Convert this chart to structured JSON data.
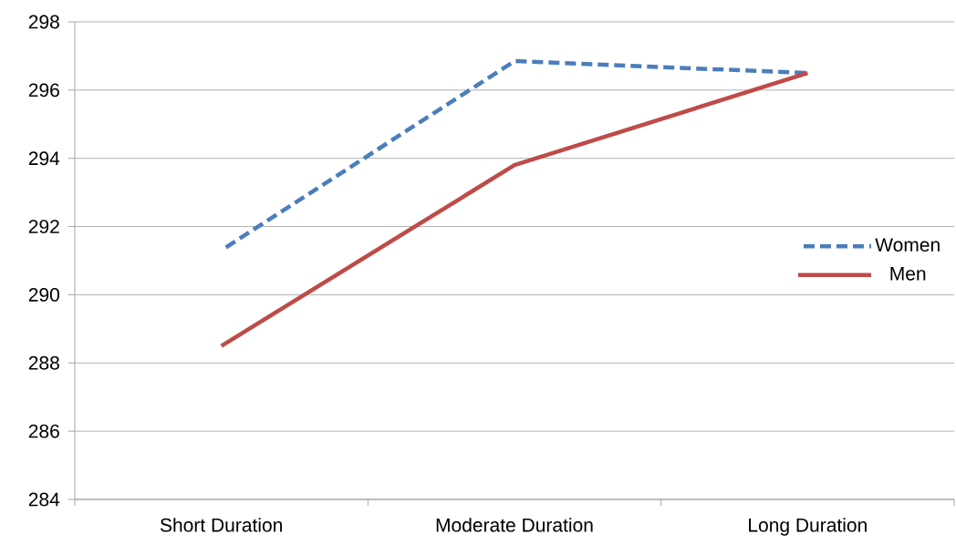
{
  "chart_data": {
    "type": "line",
    "categories": [
      "Short Duration",
      "Moderate Duration",
      "Long Duration"
    ],
    "series": [
      {
        "name": "Women",
        "color": "#4a7ebb",
        "line_style": "dashed",
        "values": [
          291.3,
          296.85,
          296.5
        ]
      },
      {
        "name": "Men",
        "color": "#be4b48",
        "line_style": "solid",
        "values": [
          288.5,
          293.8,
          296.5
        ]
      }
    ],
    "ylim": [
      284,
      298
    ],
    "yticks": [
      284,
      286,
      288,
      290,
      292,
      294,
      296,
      298
    ],
    "grid": "y",
    "legend": "right",
    "marker": "none"
  }
}
